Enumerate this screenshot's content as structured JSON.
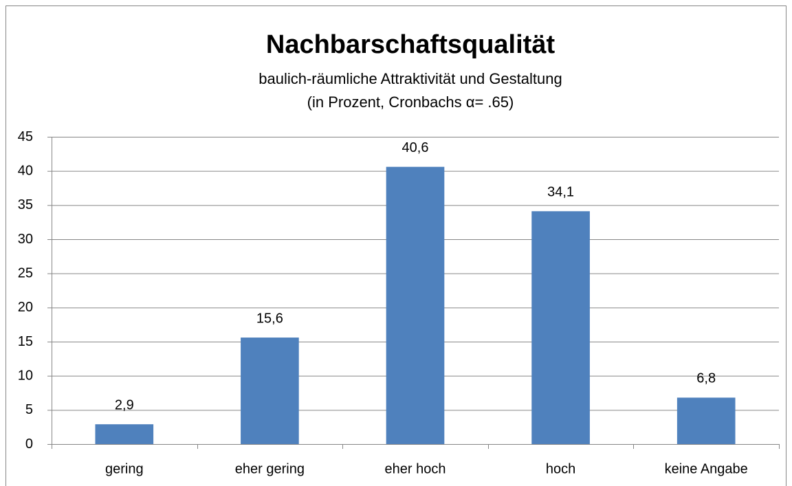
{
  "chart_data": {
    "type": "bar",
    "title": "Nachbarschaftsqualität",
    "subtitle": [
      "baulich-räumliche Attraktivität und Gestaltung",
      "(in Prozent, Cronbachs α= .65)"
    ],
    "categories": [
      "gering",
      "eher gering",
      "eher hoch",
      "hoch",
      "keine Angabe"
    ],
    "values": [
      2.9,
      15.6,
      40.6,
      34.1,
      6.8
    ],
    "value_labels": [
      "2,9",
      "15,6",
      "40,6",
      "34,1",
      "6,8"
    ],
    "color": "#4f81bd",
    "ylim": [
      0,
      45
    ],
    "yticks": [
      0,
      5,
      10,
      15,
      20,
      25,
      30,
      35,
      40,
      45
    ],
    "grid": true
  }
}
